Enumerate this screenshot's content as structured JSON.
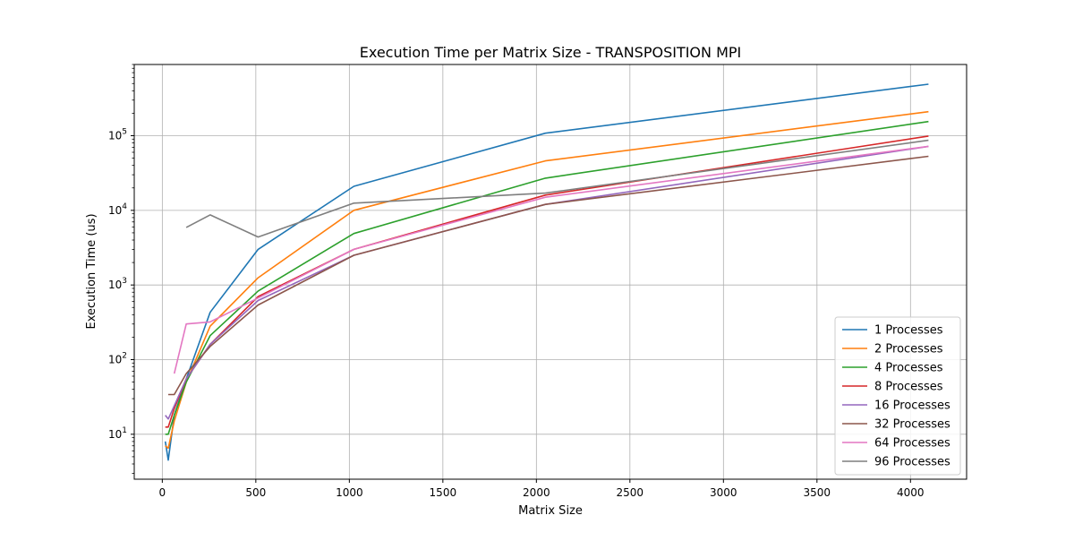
{
  "chart_data": {
    "type": "line",
    "title": "Execution Time per Matrix Size - TRANSPOSITION MPI",
    "xlabel": "Matrix Size",
    "ylabel": "Execution Time (us)",
    "xlim": [
      -150,
      4300
    ],
    "ylim": [
      2.5,
      900000
    ],
    "yscale": "log",
    "grid": true,
    "legend_position": "lower-right",
    "x_ticks": [
      0,
      500,
      1000,
      1500,
      2000,
      2500,
      3000,
      3500,
      4000
    ],
    "y_ticks": [
      10,
      100,
      1000,
      10000,
      100000
    ],
    "y_tick_labels": [
      "10^1",
      "10^2",
      "10^3",
      "10^4",
      "10^5"
    ],
    "series": [
      {
        "name": "1 Processes",
        "color": "#1f77b4",
        "x": [
          16,
          32,
          64,
          128,
          256,
          512,
          1024,
          2048,
          4096
        ],
        "y": [
          8,
          4.5,
          18,
          55,
          430,
          3000,
          21000,
          108000,
          490000
        ]
      },
      {
        "name": "2 Processes",
        "color": "#ff7f0e",
        "x": [
          16,
          32,
          64,
          128,
          256,
          512,
          1024,
          2048,
          4096
        ],
        "y": [
          7,
          6.5,
          15,
          50,
          280,
          1250,
          10000,
          46000,
          210000
        ]
      },
      {
        "name": "4 Processes",
        "color": "#2ca02c",
        "x": [
          16,
          32,
          64,
          128,
          256,
          512,
          1024,
          2048,
          4096
        ],
        "y": [
          10,
          10,
          18,
          50,
          210,
          830,
          4900,
          27000,
          155000
        ]
      },
      {
        "name": "8 Processes",
        "color": "#d62728",
        "x": [
          16,
          32,
          64,
          128,
          256,
          512,
          1024,
          2048,
          4096
        ],
        "y": [
          12.5,
          12.5,
          22,
          55,
          160,
          700,
          3000,
          16000,
          99000
        ]
      },
      {
        "name": "16 Processes",
        "color": "#9467bd",
        "x": [
          16,
          32,
          64,
          128,
          256,
          512,
          1024,
          2048,
          4096
        ],
        "y": [
          18,
          16,
          24,
          55,
          160,
          620,
          2500,
          12000,
          72000
        ]
      },
      {
        "name": "32 Processes",
        "color": "#8c564b",
        "x": [
          32,
          64,
          128,
          256,
          512,
          1024,
          2048,
          4096
        ],
        "y": [
          34,
          34,
          65,
          150,
          540,
          2500,
          12000,
          53000
        ]
      },
      {
        "name": "64 Processes",
        "color": "#e377c2",
        "x": [
          64,
          128,
          256,
          512,
          1024,
          2048,
          4096
        ],
        "y": [
          65,
          300,
          320,
          670,
          3000,
          15000,
          72000
        ]
      },
      {
        "name": "96 Processes",
        "color": "#7f7f7f",
        "x": [
          128,
          256,
          512,
          1024,
          2048,
          4096
        ],
        "y": [
          5900,
          8700,
          4400,
          12500,
          17000,
          87000
        ]
      }
    ]
  }
}
